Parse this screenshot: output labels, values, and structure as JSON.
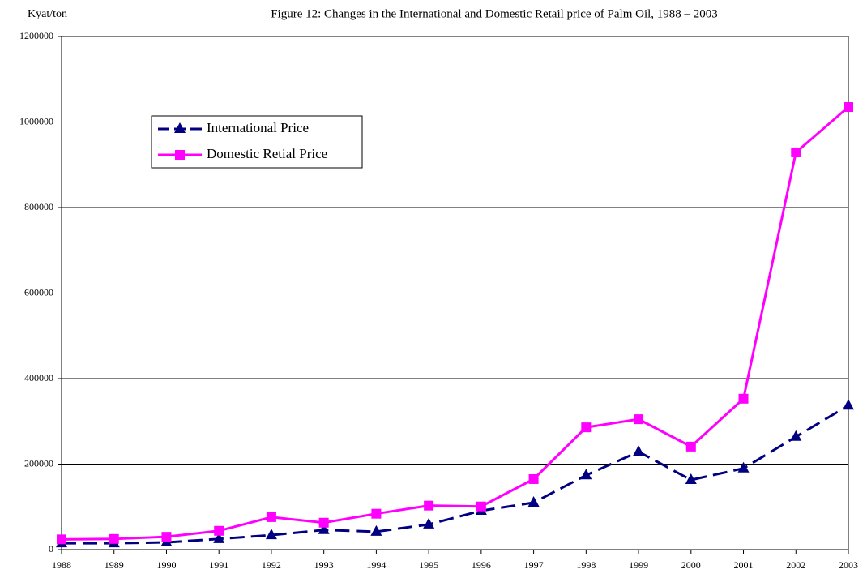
{
  "chart_data": {
    "type": "line",
    "title": "Figure 12: Changes in the International and Domestic Retail price of Palm Oil, 1988 – 2003",
    "y_label": "Kyat/ton",
    "categories": [
      "1988",
      "1989",
      "1990",
      "1991",
      "1992",
      "1993",
      "1994",
      "1995",
      "1996",
      "1997",
      "1998",
      "1999",
      "2000",
      "2001",
      "2002",
      "2003"
    ],
    "series": [
      {
        "name": "International Price",
        "color": "#000080",
        "dashed": true,
        "marker": "triangle",
        "values": [
          15000,
          15000,
          17000,
          25000,
          34000,
          46000,
          42000,
          59000,
          91000,
          110000,
          174000,
          229000,
          163000,
          190000,
          264000,
          337000
        ]
      },
      {
        "name": "Domestic Retial Price",
        "color": "#ff00ff",
        "dashed": false,
        "marker": "square",
        "values": [
          24000,
          25000,
          30000,
          44000,
          76000,
          63000,
          84000,
          103000,
          101000,
          165000,
          286000,
          305000,
          241000,
          353000,
          929000,
          1035000
        ]
      }
    ],
    "ylim": [
      0,
      1200000
    ],
    "yticks": [
      0,
      200000,
      400000,
      600000,
      800000,
      1000000,
      1200000
    ],
    "grid": true,
    "legend": "upper left"
  }
}
